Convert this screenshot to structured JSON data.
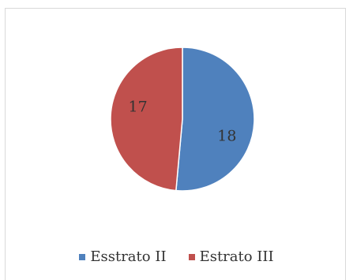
{
  "chart_data": {
    "type": "pie",
    "categories": [
      "Esstrato II",
      "Estrato III"
    ],
    "values": [
      18,
      17
    ],
    "colors": [
      "#4f81bd",
      "#c0504d"
    ],
    "legend_position": "bottom",
    "data_labels": [
      "18",
      "17"
    ]
  }
}
